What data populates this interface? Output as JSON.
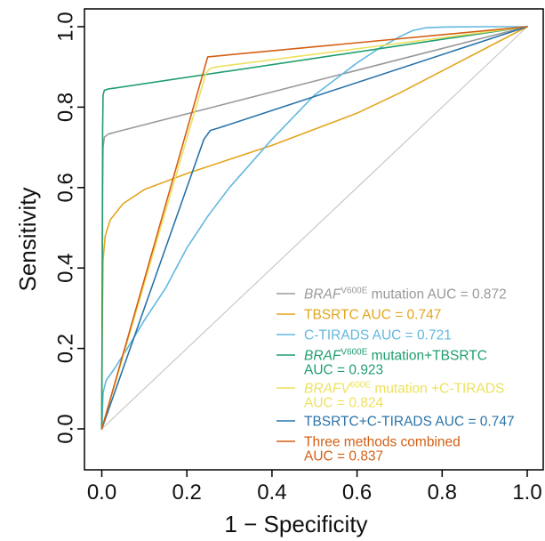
{
  "chart_data": {
    "type": "line",
    "title": "",
    "xlabel": "1 − Specificity",
    "ylabel": "Sensitivity",
    "xlim": [
      0,
      1
    ],
    "ylim": [
      0,
      1
    ],
    "xticks": [
      0.0,
      0.2,
      0.4,
      0.6,
      0.8,
      1.0
    ],
    "yticks": [
      0.0,
      0.2,
      0.4,
      0.6,
      0.8,
      1.0
    ],
    "xtick_labels": [
      "0.0",
      "0.2",
      "0.4",
      "0.6",
      "0.8",
      "1.0"
    ],
    "ytick_labels": [
      "0.0",
      "0.2",
      "0.4",
      "0.6",
      "0.8",
      "1.0"
    ],
    "grid": false,
    "legend_position": "bottom-right",
    "diagonal_reference": true,
    "series": [
      {
        "color": "#9a9a9a",
        "legend": {
          "lines": [
            {
              "italic": "BRAF",
              "sup": "V600E",
              "rest": " mutation AUC = 0.872"
            }
          ]
        },
        "points": [
          [
            0,
            0
          ],
          [
            0.001,
            0.3
          ],
          [
            0.002,
            0.6
          ],
          [
            0.003,
            0.7
          ],
          [
            0.006,
            0.725
          ],
          [
            0.015,
            0.733
          ],
          [
            0.04,
            0.74
          ],
          [
            1,
            1
          ]
        ]
      },
      {
        "color": "#e3a51e",
        "legend": {
          "lines": [
            {
              "rest": "TBSRTC AUC = 0.747"
            }
          ]
        },
        "points": [
          [
            0,
            0
          ],
          [
            0.001,
            0.25
          ],
          [
            0.003,
            0.42
          ],
          [
            0.008,
            0.48
          ],
          [
            0.02,
            0.52
          ],
          [
            0.05,
            0.56
          ],
          [
            0.1,
            0.595
          ],
          [
            0.2,
            0.635
          ],
          [
            0.3,
            0.67
          ],
          [
            0.4,
            0.705
          ],
          [
            0.5,
            0.745
          ],
          [
            0.6,
            0.785
          ],
          [
            0.7,
            0.835
          ],
          [
            0.8,
            0.89
          ],
          [
            0.9,
            0.945
          ],
          [
            1,
            1
          ]
        ]
      },
      {
        "color": "#62b8df",
        "legend": {
          "lines": [
            {
              "rest": "C-TIRADS AUC = 0.721"
            }
          ]
        },
        "points": [
          [
            0,
            0
          ],
          [
            0.003,
            0.09
          ],
          [
            0.01,
            0.12
          ],
          [
            0.03,
            0.15
          ],
          [
            0.06,
            0.2
          ],
          [
            0.1,
            0.27
          ],
          [
            0.15,
            0.35
          ],
          [
            0.2,
            0.45
          ],
          [
            0.25,
            0.53
          ],
          [
            0.3,
            0.6
          ],
          [
            0.4,
            0.72
          ],
          [
            0.5,
            0.83
          ],
          [
            0.6,
            0.91
          ],
          [
            0.65,
            0.945
          ],
          [
            0.7,
            0.975
          ],
          [
            0.73,
            0.99
          ],
          [
            0.76,
            0.997
          ],
          [
            0.8,
            0.999
          ],
          [
            0.9,
            1
          ],
          [
            1,
            1
          ]
        ]
      },
      {
        "color": "#1f9e6e",
        "legend": {
          "lines": [
            {
              "italic": "BRAF",
              "sup": "V600E",
              "rest": " mutation+TBSRTC"
            },
            {
              "rest": "AUC = 0.923"
            }
          ]
        },
        "points": [
          [
            0,
            0
          ],
          [
            0.001,
            0.4
          ],
          [
            0.002,
            0.75
          ],
          [
            0.003,
            0.83
          ],
          [
            0.006,
            0.842
          ],
          [
            0.015,
            0.845
          ],
          [
            1,
            1
          ]
        ]
      },
      {
        "color": "#ede15e",
        "legend": {
          "lines": [
            {
              "italic": "BRAFV",
              "sup": "600E",
              "rest": " mutation +C-TIRADS"
            },
            {
              "rest": "AUC = 0.824"
            }
          ]
        },
        "points": [
          [
            0,
            0
          ],
          [
            0.245,
            0.885
          ],
          [
            0.255,
            0.896
          ],
          [
            0.27,
            0.9
          ],
          [
            1,
            1
          ]
        ]
      },
      {
        "color": "#2a74a9",
        "legend": {
          "lines": [
            {
              "rest": "TBSRTC+C-TIRADS AUC = 0.747"
            }
          ]
        },
        "points": [
          [
            0,
            0
          ],
          [
            0.24,
            0.72
          ],
          [
            0.255,
            0.742
          ],
          [
            0.28,
            0.75
          ],
          [
            1,
            1
          ]
        ]
      },
      {
        "color": "#d35f14",
        "legend": {
          "lines": [
            {
              "rest": "Three methods combined"
            },
            {
              "rest": "AUC = 0.837"
            }
          ]
        },
        "points": [
          [
            0,
            0
          ],
          [
            0.249,
            0.925
          ],
          [
            1,
            1
          ]
        ]
      }
    ]
  }
}
